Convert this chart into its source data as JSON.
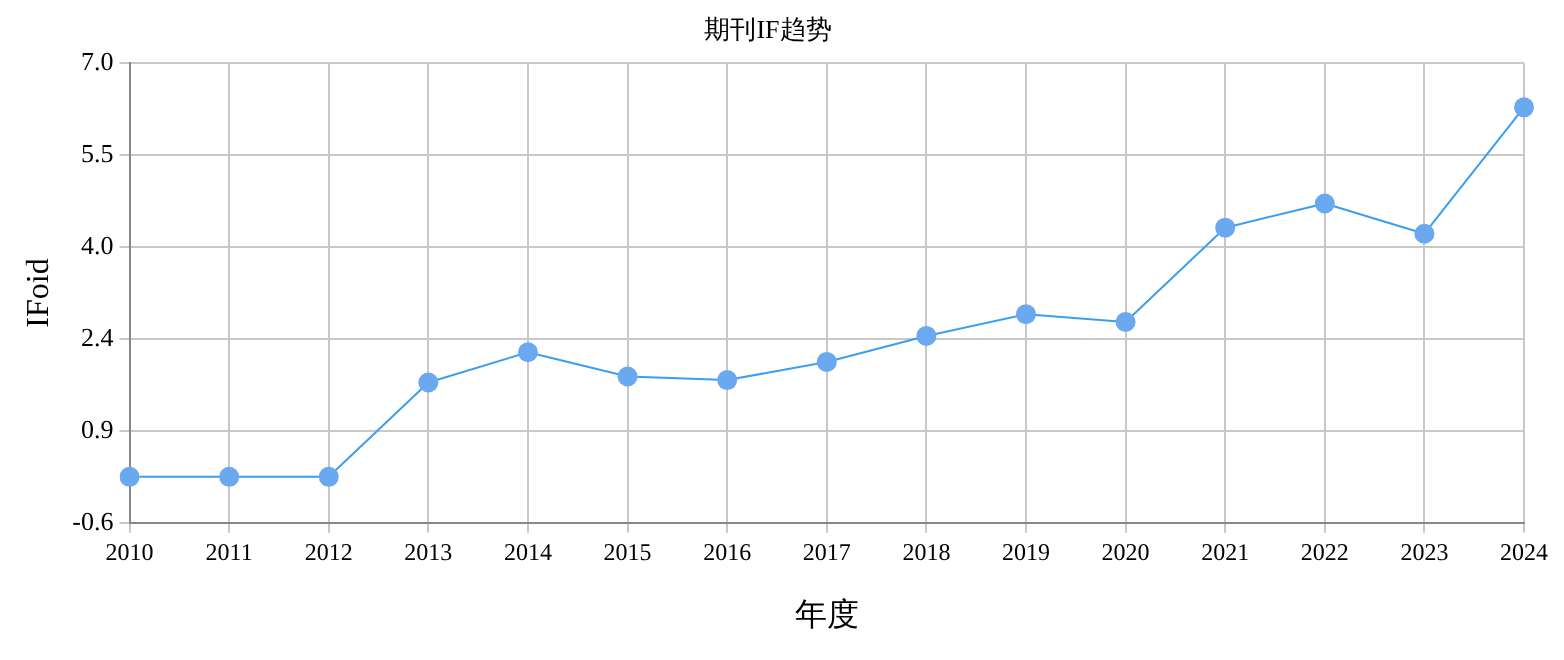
{
  "chart_data": {
    "type": "line",
    "title": "期刊IF趋势",
    "xlabel": "年度",
    "ylabel": "IFoid",
    "categories": [
      "2010",
      "2011",
      "2012",
      "2013",
      "2014",
      "2015",
      "2016",
      "2017",
      "2018",
      "2019",
      "2020",
      "2021",
      "2022",
      "2023",
      "2024"
    ],
    "series": [
      {
        "color": "#3a9ff0",
        "values": [
          0.16,
          0.16,
          0.16,
          1.72,
          2.22,
          1.82,
          1.76,
          2.06,
          2.49,
          2.85,
          2.72,
          4.28,
          4.68,
          4.18,
          6.27
        ]
      }
    ],
    "ylim": [
      -0.6,
      7.0
    ],
    "yticks": [
      {
        "value": -0.6,
        "label": "-0.6"
      },
      {
        "value": 0.92,
        "label": "0.9"
      },
      {
        "value": 2.44,
        "label": "2.4"
      },
      {
        "value": 3.96,
        "label": "4.0"
      },
      {
        "value": 5.48,
        "label": "5.5"
      },
      {
        "value": 7.0,
        "label": "7.0"
      }
    ],
    "grid": true,
    "legend": false,
    "marker": "circle",
    "line_style": "solid"
  }
}
